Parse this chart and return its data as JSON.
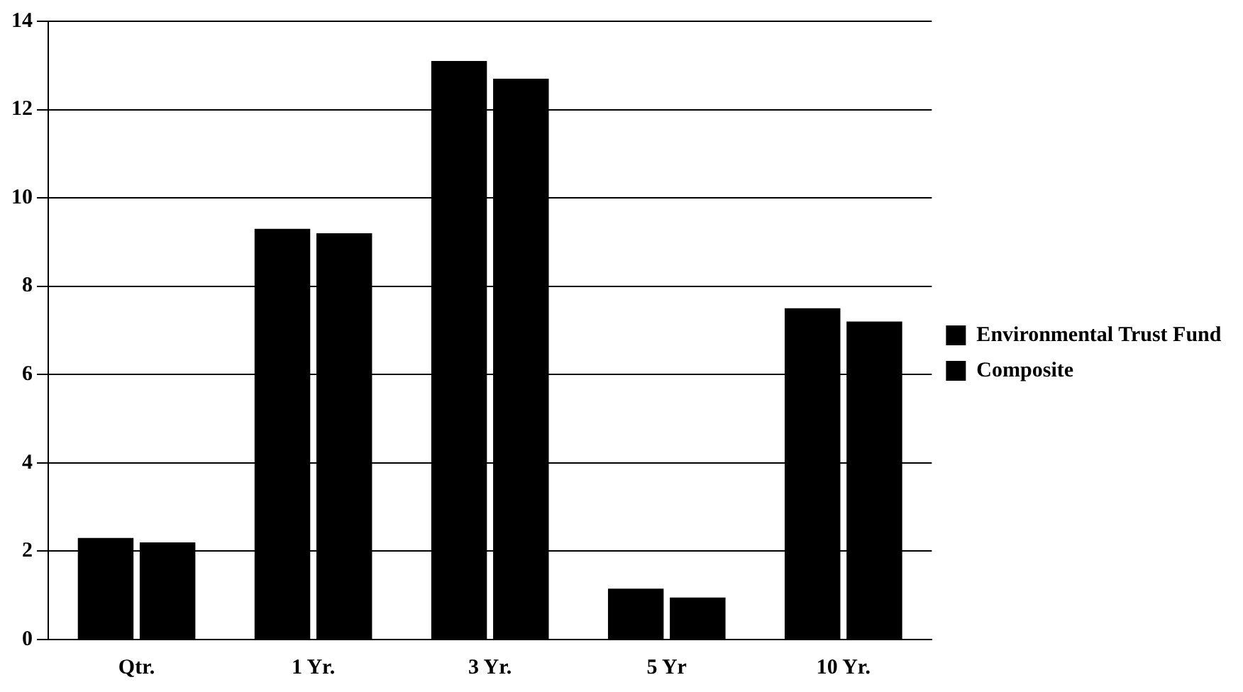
{
  "chart_data": {
    "type": "bar",
    "categories": [
      "Qtr.",
      "1 Yr.",
      "3 Yr.",
      "5 Yr",
      "10 Yr."
    ],
    "series": [
      {
        "name": "Environmental Trust Fund",
        "color": "#000000",
        "values": [
          2.3,
          9.3,
          13.1,
          1.15,
          7.5
        ]
      },
      {
        "name": "Composite",
        "color": "#000000",
        "values": [
          2.2,
          9.2,
          12.7,
          0.95,
          7.2
        ]
      }
    ],
    "ylim": [
      0,
      14
    ],
    "yticks": [
      0,
      2,
      4,
      6,
      8,
      10,
      12,
      14
    ],
    "grid": "y",
    "legend": "right"
  }
}
